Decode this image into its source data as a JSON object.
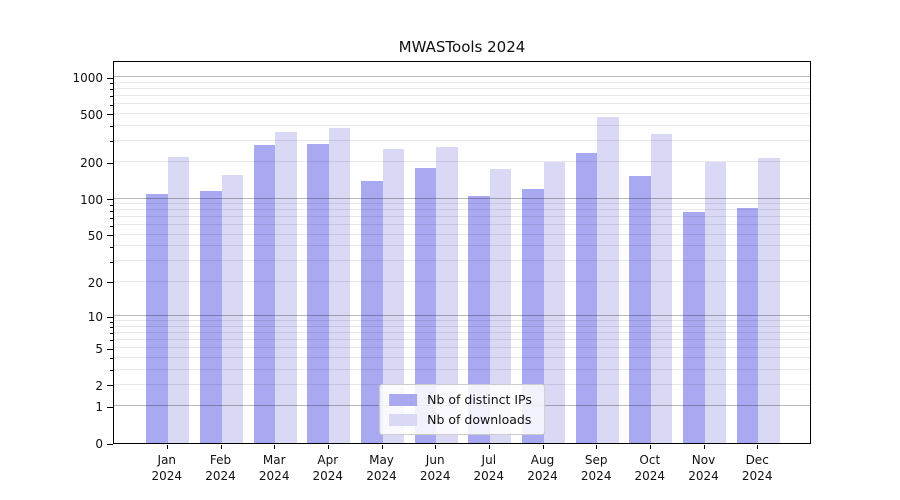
{
  "chart_data": {
    "type": "bar",
    "title": "MWASTools 2024",
    "categories": [
      "Jan",
      "Feb",
      "Mar",
      "Apr",
      "May",
      "Jun",
      "Jul",
      "Aug",
      "Sep",
      "Oct",
      "Nov",
      "Dec"
    ],
    "category_year": "2024",
    "series": [
      {
        "name": "Nb of distinct IPs",
        "color": "#a9a9f2",
        "values": [
          110,
          115,
          278,
          283,
          141,
          178,
          105,
          121,
          236,
          153,
          77,
          84
        ]
      },
      {
        "name": "Nb of downloads",
        "color": "#d9d9f6",
        "values": [
          222,
          158,
          356,
          380,
          255,
          267,
          177,
          200,
          470,
          340,
          200,
          216
        ]
      }
    ],
    "yscale": "log1p",
    "ylim": [
      0,
      1380
    ],
    "y_ticks": [
      0,
      1,
      2,
      5,
      10,
      20,
      50,
      100,
      200,
      500,
      1000
    ],
    "major_grid_values": [
      1,
      10,
      100,
      1000
    ],
    "grid": true,
    "legend_position": "lower center",
    "colors": {
      "distinct_ips": "#a9a9f2",
      "downloads": "#d9d9f6",
      "major_grid": "rgba(0,0,0,0.28)",
      "minor_grid": "rgba(0,0,0,0.09)",
      "spine": "#000000",
      "background": "#ffffff"
    }
  }
}
